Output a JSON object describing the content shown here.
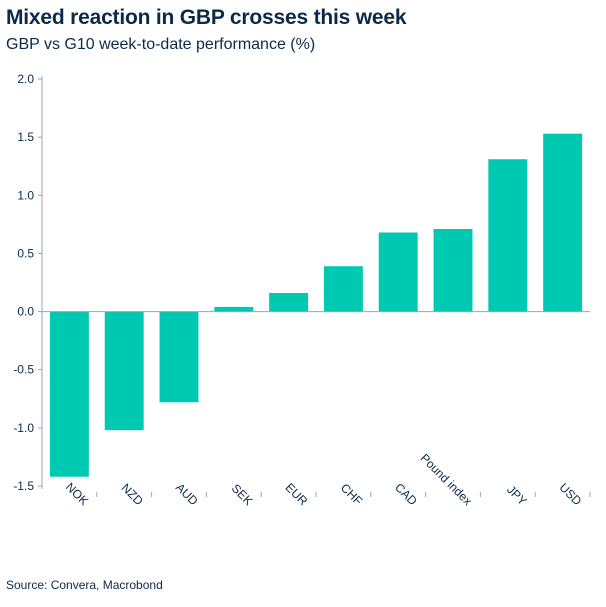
{
  "title": "Mixed reaction in GBP crosses this week",
  "subtitle": "GBP vs G10 week-to-date performance (%)",
  "source": "Source: Convera, Macrobond",
  "colors": {
    "bar": "#00c9b1",
    "text": "#0b2a4a",
    "axis": "#9aa6b2"
  },
  "chart_data": {
    "type": "bar",
    "categories": [
      "NOK",
      "NZD",
      "AUD",
      "SEK",
      "EUR",
      "CHF",
      "CAD",
      "Pound index",
      "JPY",
      "USD"
    ],
    "values": [
      -1.42,
      -1.02,
      -0.78,
      0.04,
      0.16,
      0.39,
      0.68,
      0.71,
      1.31,
      1.53
    ],
    "ylim": [
      -1.5,
      2.0
    ],
    "yticks": [
      "2.0",
      "1.5",
      "1.0",
      "0.5",
      "0.0",
      "-0.5",
      "-1.0",
      "-1.5"
    ],
    "ytick_values": [
      2.0,
      1.5,
      1.0,
      0.5,
      0.0,
      -0.5,
      -1.0,
      -1.5
    ],
    "grid": false,
    "legend": "none",
    "xlabel": "",
    "ylabel": ""
  }
}
